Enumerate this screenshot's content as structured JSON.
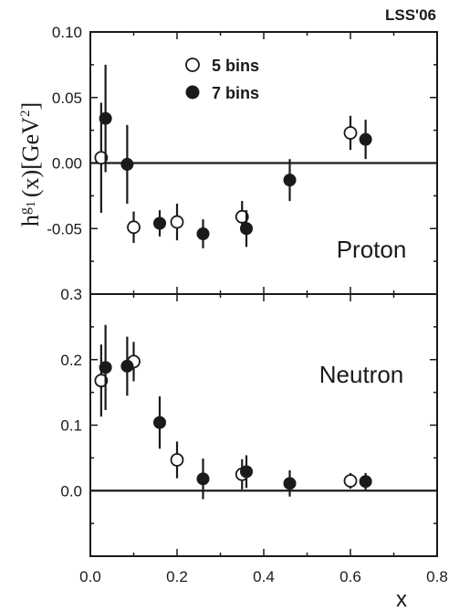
{
  "chart_data": {
    "type": "scatter",
    "corner_label": "LSS'06",
    "ylabel": {
      "main": "h",
      "sup_g": "g",
      "sub_1": "1",
      "paren": "(x)",
      "unit": "[GeV",
      "unit_pow": "2",
      "unit_close": "]"
    },
    "xlabel": "x",
    "x_ticks": [
      "0.0",
      "0.2",
      "0.4",
      "0.6",
      "0.8"
    ],
    "x_tick_values": [
      0.0,
      0.2,
      0.4,
      0.6,
      0.8
    ],
    "xlim": [
      0.0,
      0.8
    ],
    "legend": [
      {
        "marker": "open",
        "label": "5 bins"
      },
      {
        "marker": "filled",
        "label": "7 bins"
      }
    ],
    "panels": [
      {
        "label": "Proton",
        "ylim": [
          -0.1,
          0.1
        ],
        "y_ticks": [
          "0.10",
          "0.05",
          "0.00",
          "-0.05"
        ],
        "y_tick_values": [
          0.1,
          0.05,
          0.0,
          -0.05
        ],
        "series": [
          {
            "name": "5 bins",
            "marker": "open",
            "points": [
              {
                "x": 0.025,
                "y": 0.004,
                "err": 0.042
              },
              {
                "x": 0.1,
                "y": -0.049,
                "err": 0.012
              },
              {
                "x": 0.2,
                "y": -0.045,
                "err": 0.014
              },
              {
                "x": 0.35,
                "y": -0.041,
                "err": 0.012
              },
              {
                "x": 0.6,
                "y": 0.023,
                "err": 0.013
              }
            ]
          },
          {
            "name": "7 bins",
            "marker": "filled",
            "points": [
              {
                "x": 0.035,
                "y": 0.034,
                "err": 0.041
              },
              {
                "x": 0.085,
                "y": -0.001,
                "err": 0.03
              },
              {
                "x": 0.16,
                "y": -0.046,
                "err": 0.01
              },
              {
                "x": 0.26,
                "y": -0.054,
                "err": 0.011
              },
              {
                "x": 0.36,
                "y": -0.05,
                "err": 0.014
              },
              {
                "x": 0.46,
                "y": -0.013,
                "err": 0.016
              },
              {
                "x": 0.635,
                "y": 0.018,
                "err": 0.015
              }
            ]
          }
        ]
      },
      {
        "label": "Neutron",
        "ylim": [
          -0.1,
          0.3
        ],
        "y_ticks": [
          "0.3",
          "0.2",
          "0.1",
          "0.0"
        ],
        "y_tick_values": [
          0.3,
          0.2,
          0.1,
          0.0
        ],
        "series": [
          {
            "name": "5 bins",
            "marker": "open",
            "points": [
              {
                "x": 0.025,
                "y": 0.168,
                "err": 0.055
              },
              {
                "x": 0.1,
                "y": 0.197,
                "err": 0.03
              },
              {
                "x": 0.2,
                "y": 0.047,
                "err": 0.028
              },
              {
                "x": 0.35,
                "y": 0.025,
                "err": 0.023
              },
              {
                "x": 0.6,
                "y": 0.015,
                "err": 0.012
              }
            ]
          },
          {
            "name": "7 bins",
            "marker": "filled",
            "points": [
              {
                "x": 0.035,
                "y": 0.188,
                "err": 0.065
              },
              {
                "x": 0.085,
                "y": 0.19,
                "err": 0.045
              },
              {
                "x": 0.16,
                "y": 0.104,
                "err": 0.04
              },
              {
                "x": 0.26,
                "y": 0.018,
                "err": 0.031
              },
              {
                "x": 0.36,
                "y": 0.029,
                "err": 0.025
              },
              {
                "x": 0.46,
                "y": 0.011,
                "err": 0.02
              },
              {
                "x": 0.635,
                "y": 0.014,
                "err": 0.013
              }
            ]
          }
        ]
      }
    ]
  }
}
